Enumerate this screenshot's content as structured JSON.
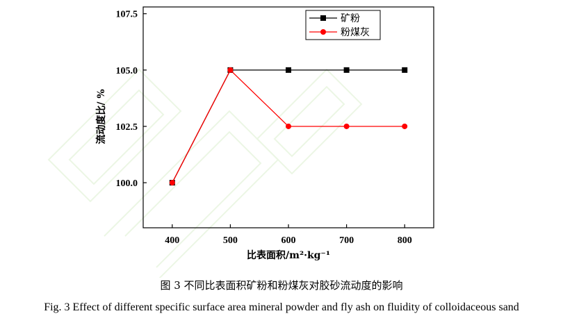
{
  "chart_data": {
    "type": "line",
    "x": [
      400,
      500,
      600,
      700,
      800
    ],
    "series": [
      {
        "name": "矿粉",
        "values": [
          100.0,
          105.0,
          105.0,
          105.0,
          105.0
        ],
        "color": "#000000",
        "marker": "square"
      },
      {
        "name": "粉煤灰",
        "values": [
          100.0,
          105.0,
          102.5,
          102.5,
          102.5
        ],
        "color": "#ff0000",
        "marker": "circle"
      }
    ],
    "xlabel": "比表面积/m²·kg⁻¹",
    "ylabel": "流动度比/ %",
    "xlim": [
      350,
      850
    ],
    "ylim": [
      98.0,
      107.8
    ],
    "xticks": [
      "400",
      "500",
      "600",
      "700",
      "800"
    ],
    "yticks": [
      "100.0",
      "102.5",
      "105.0",
      "107.5"
    ],
    "ytick_values": [
      100.0,
      102.5,
      105.0,
      107.5
    ],
    "grid": false,
    "legend_position": "top-right"
  },
  "caption": {
    "zh": "图 3  不同比表面积矿粉和粉煤灰对胶砂流动度的影响",
    "en": "Fig. 3 Effect of different specific surface area mineral powder and fly ash on fluidity of colloidaceous sand"
  }
}
